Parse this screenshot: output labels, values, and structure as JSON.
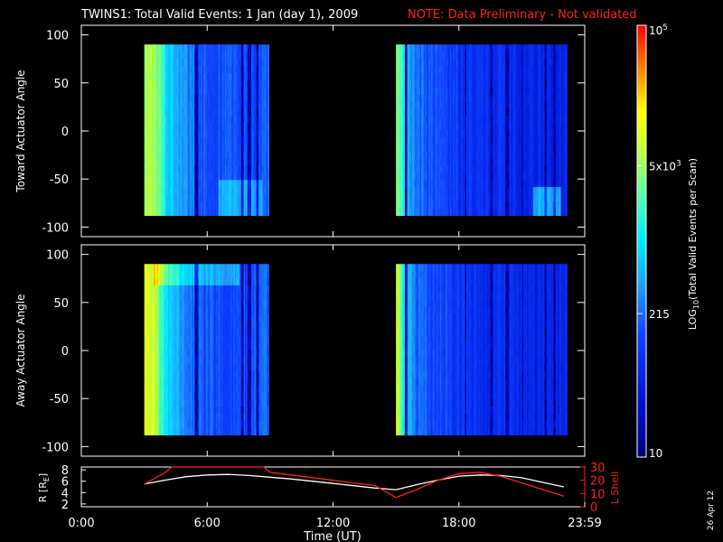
{
  "title": {
    "main": "TWINS1: Total Valid Events:  1 Jan (day   1), 2009",
    "note": "NOTE: Data Preliminary - Not validated",
    "note_color": "#ff2020"
  },
  "date_stamp": "26 Apr 12",
  "chart_data": [
    {
      "type": "heatmap",
      "panel": "toward",
      "ylabel": "Toward Actuator Angle",
      "yticks": [
        "100",
        "50",
        "0",
        "-50",
        "-100"
      ],
      "ylim": [
        -110,
        110
      ],
      "xlim": [
        0,
        24
      ],
      "angle_range": [
        -88,
        90
      ],
      "data_blocks_hours": [
        [
          3.0,
          8.9
        ],
        [
          15.0,
          23.1
        ]
      ],
      "dark_columns_hours": [
        [
          5.45,
          5.55
        ],
        [
          7.65,
          7.7
        ],
        [
          7.95,
          8.05
        ],
        [
          8.35,
          8.45
        ],
        [
          15.45,
          15.5
        ],
        [
          18.3,
          18.35
        ],
        [
          19.5,
          19.6
        ],
        [
          20.25,
          20.35
        ],
        [
          21.0,
          21.05
        ],
        [
          22.1,
          22.15
        ],
        [
          22.5,
          22.6
        ]
      ],
      "sample_profile_hours": [
        3.0,
        3.5,
        4.0,
        4.5,
        5.0,
        5.5,
        6.0,
        7.0,
        8.0,
        15.0,
        15.5,
        16.0,
        17.0,
        18.0,
        19.0,
        20.0,
        21.0,
        22.0,
        23.0
      ],
      "sample_profile_log10": [
        3.8,
        3.7,
        3.0,
        2.7,
        2.5,
        2.3,
        2.2,
        2.2,
        2.1,
        3.6,
        2.8,
        2.3,
        2.1,
        2.0,
        1.9,
        1.9,
        1.8,
        1.8,
        1.8
      ]
    },
    {
      "type": "heatmap",
      "panel": "away",
      "ylabel": "Away Actuator Angle",
      "yticks": [
        "100",
        "50",
        "0",
        "-50",
        "-100"
      ],
      "ylim": [
        -110,
        110
      ],
      "xlim": [
        0,
        24
      ],
      "angle_range": [
        -88,
        90
      ],
      "data_blocks_hours": [
        [
          3.0,
          8.9
        ],
        [
          15.0,
          23.1
        ]
      ],
      "dark_columns_hours": [
        [
          5.45,
          5.55
        ],
        [
          7.65,
          7.7
        ],
        [
          7.95,
          8.05
        ],
        [
          8.35,
          8.45
        ],
        [
          15.45,
          15.5
        ],
        [
          18.3,
          18.35
        ],
        [
          19.5,
          19.6
        ],
        [
          20.25,
          20.35
        ],
        [
          21.0,
          21.05
        ],
        [
          22.1,
          22.15
        ],
        [
          22.5,
          22.6
        ]
      ],
      "sample_profile_hours": [
        3.0,
        3.5,
        4.0,
        4.5,
        5.0,
        5.5,
        6.0,
        7.0,
        8.0,
        15.0,
        15.5,
        16.0,
        17.0,
        18.0,
        19.0,
        20.0,
        21.0,
        22.0,
        23.0
      ],
      "sample_profile_log10": [
        4.0,
        3.9,
        3.0,
        2.7,
        2.5,
        2.3,
        2.2,
        2.2,
        2.1,
        4.0,
        2.8,
        2.3,
        2.1,
        2.0,
        1.9,
        1.9,
        1.8,
        1.8,
        1.8
      ]
    },
    {
      "type": "line",
      "panel": "orbit",
      "xlabel": "Time (UT)",
      "xticks": [
        "0:00",
        "6:00",
        "12:00",
        "18:00",
        "23:59"
      ],
      "xtick_hours": [
        0,
        6,
        12,
        18,
        24
      ],
      "xlim": [
        0,
        24
      ],
      "left_axis": {
        "label": "R [R",
        "label_sub": "E",
        "label_end": "]",
        "ticks": [
          "8",
          "6",
          "4",
          "2"
        ],
        "ylim": [
          1.5,
          8.5
        ]
      },
      "right_axis": {
        "label": "L Shell",
        "ticks": [
          "30",
          "20",
          "10",
          "0"
        ],
        "ylim": [
          0,
          30
        ],
        "color": "#ff2020"
      },
      "series": [
        {
          "name": "R",
          "color": "#ffffff",
          "x": [
            3.0,
            4.0,
            5.0,
            6.0,
            7.0,
            8.0,
            9.0,
            10.0,
            11.0,
            12.0,
            13.0,
            14.0,
            15.0,
            16.0,
            17.0,
            18.0,
            19.0,
            20.0,
            21.0,
            22.0,
            23.0
          ],
          "y": [
            5.5,
            6.2,
            6.8,
            7.1,
            7.2,
            7.0,
            6.7,
            6.4,
            6.0,
            5.6,
            5.2,
            4.8,
            4.5,
            5.4,
            6.2,
            6.9,
            7.1,
            7.0,
            6.6,
            5.8,
            5.0
          ]
        },
        {
          "name": "L Shell",
          "color": "#ff2020",
          "x": [
            3.0,
            4.0,
            4.3,
            8.7,
            9.0,
            10.0,
            11.0,
            12.0,
            13.0,
            14.0,
            15.0,
            16.0,
            17.0,
            18.0,
            19.0,
            20.0,
            21.0,
            22.0,
            23.0
          ],
          "y": [
            17,
            26,
            30,
            30,
            26,
            24,
            22,
            20,
            18,
            16,
            7,
            13,
            20,
            25,
            26,
            23,
            18,
            13,
            8
          ]
        }
      ]
    }
  ],
  "colorbar": {
    "label_prefix": "LOG",
    "label_sub": "10",
    "label_suffix": "(Total Valid Events per Scan)",
    "ticks": [
      {
        "value": 5,
        "text": "10",
        "sup": "5"
      },
      {
        "value": 3.7,
        "text": "5x10",
        "sup": "3"
      },
      {
        "value": 2.33,
        "text": "215",
        "sup": ""
      },
      {
        "value": 1,
        "text": "10",
        "sup": ""
      }
    ],
    "range": [
      1,
      5
    ]
  }
}
